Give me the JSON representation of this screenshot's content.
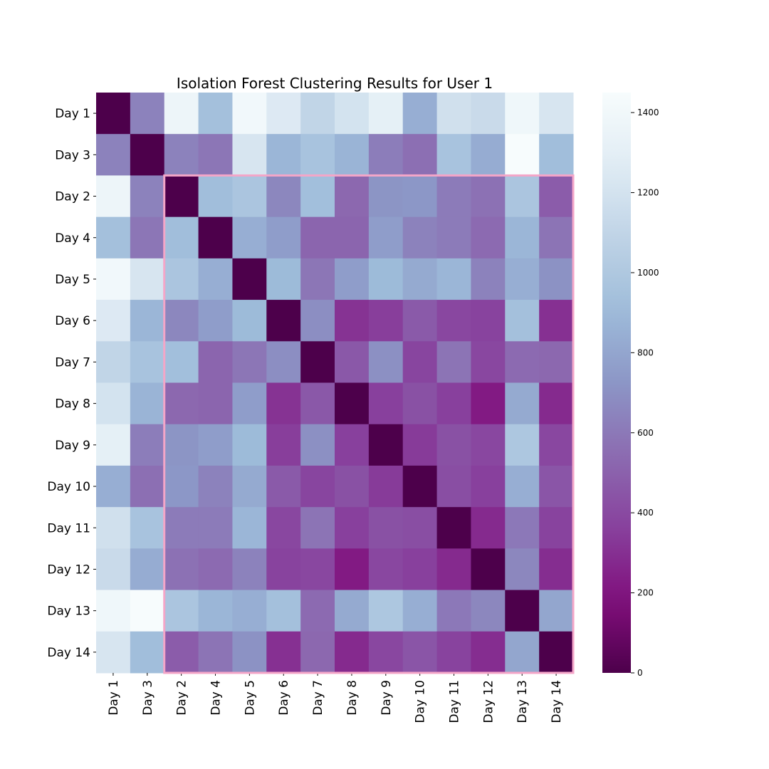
{
  "chart_data": {
    "type": "heatmap",
    "title": "Isolation Forest Clustering Results for User 1",
    "row_labels": [
      "Day 1",
      "Day 3",
      "Day 2",
      "Day 4",
      "Day 5",
      "Day 6",
      "Day 7",
      "Day 8",
      "Day 9",
      "Day 10",
      "Day 11",
      "Day 12",
      "Day 13",
      "Day 14"
    ],
    "col_labels": [
      "Day 1",
      "Day 3",
      "Day 2",
      "Day 4",
      "Day 5",
      "Day 6",
      "Day 7",
      "Day 8",
      "Day 9",
      "Day 10",
      "Day 11",
      "Day 12",
      "Day 13",
      "Day 14"
    ],
    "values": [
      [
        0,
        640,
        1370,
        940,
        1400,
        1250,
        1100,
        1200,
        1310,
        840,
        1180,
        1140,
        1390,
        1220
      ],
      [
        640,
        0,
        640,
        590,
        1220,
        880,
        960,
        870,
        620,
        560,
        960,
        830,
        1450,
        920
      ],
      [
        1370,
        640,
        0,
        920,
        980,
        660,
        930,
        530,
        720,
        730,
        610,
        570,
        980,
        480
      ],
      [
        940,
        590,
        920,
        0,
        840,
        760,
        520,
        520,
        760,
        640,
        610,
        540,
        880,
        580
      ],
      [
        1400,
        1220,
        980,
        840,
        0,
        900,
        590,
        760,
        900,
        820,
        880,
        640,
        840,
        710
      ],
      [
        1250,
        880,
        660,
        760,
        900,
        0,
        690,
        310,
        350,
        470,
        390,
        370,
        940,
        300
      ],
      [
        1100,
        960,
        930,
        520,
        590,
        690,
        0,
        460,
        700,
        380,
        580,
        390,
        540,
        530
      ],
      [
        1200,
        870,
        530,
        520,
        760,
        310,
        460,
        0,
        360,
        430,
        360,
        220,
        820,
        280
      ],
      [
        1310,
        620,
        720,
        760,
        900,
        350,
        700,
        360,
        0,
        340,
        430,
        390,
        990,
        390
      ],
      [
        840,
        560,
        730,
        640,
        820,
        470,
        380,
        430,
        340,
        0,
        420,
        360,
        840,
        450
      ],
      [
        1180,
        960,
        610,
        610,
        880,
        390,
        580,
        360,
        430,
        420,
        0,
        280,
        600,
        370
      ],
      [
        1140,
        830,
        570,
        540,
        640,
        370,
        390,
        220,
        390,
        360,
        280,
        0,
        660,
        290
      ],
      [
        1390,
        1450,
        980,
        880,
        840,
        940,
        540,
        820,
        990,
        840,
        600,
        660,
        0,
        800
      ],
      [
        1220,
        920,
        480,
        580,
        710,
        300,
        530,
        280,
        390,
        450,
        370,
        290,
        800,
        0
      ]
    ],
    "colorbar": {
      "min": 0,
      "max": 1450,
      "ticks": [
        0,
        200,
        400,
        600,
        800,
        1000,
        1200,
        1400
      ]
    },
    "colormap": "BuPu",
    "highlight": {
      "row_start": 2,
      "row_end": 13,
      "col_start": 2,
      "col_end": 13,
      "color": "#f4a6c8"
    }
  }
}
